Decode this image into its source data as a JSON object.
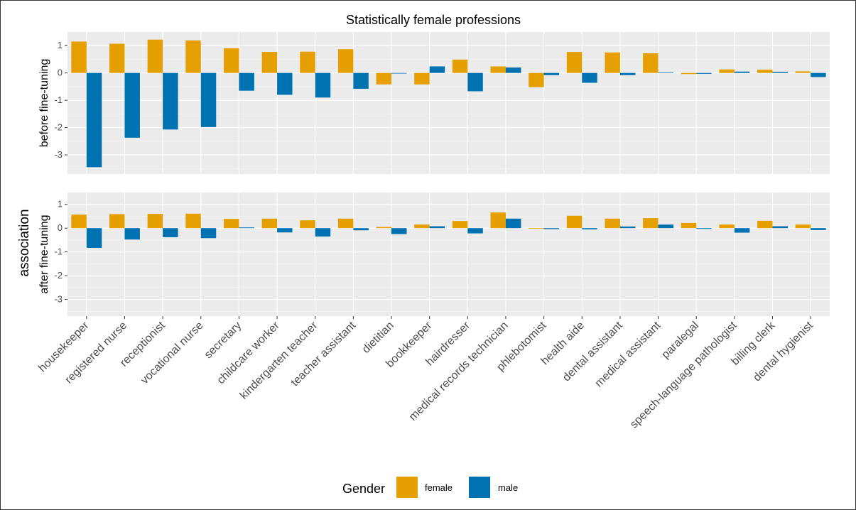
{
  "chart_data": {
    "type": "bar",
    "title": "Statistically female professions",
    "ylabel": "association",
    "ylim": [
      -3.7,
      1.5
    ],
    "yticks": [
      "1",
      "0",
      "-1",
      "-2",
      "-3"
    ],
    "grid": true,
    "legend_title": "Gender",
    "legend_position": "bottom",
    "series_colors": {
      "female": "#E69F00",
      "male": "#0072B2"
    },
    "categories": [
      "housekeeper",
      "registered nurse",
      "receptionist",
      "vocational nurse",
      "secretary",
      "childcare worker",
      "kindergarten teacher",
      "teacher assistant",
      "dietitian",
      "bookkeeper",
      "hairdresser",
      "medical records technician",
      "phlebotomist",
      "health aide",
      "dental assistant",
      "medical assistant",
      "paralegal",
      "speech-language pathologist",
      "billing clerk",
      "dental hygienist"
    ],
    "facets": [
      {
        "label": "before fine-tuning",
        "series": [
          {
            "name": "female",
            "values": [
              1.15,
              1.07,
              1.22,
              1.19,
              0.9,
              0.77,
              0.78,
              0.87,
              -0.42,
              -0.42,
              0.49,
              0.24,
              -0.52,
              0.77,
              0.75,
              0.72,
              -0.04,
              0.13,
              0.12,
              0.06
            ]
          },
          {
            "name": "male",
            "values": [
              -3.45,
              -2.37,
              -2.07,
              -1.98,
              -0.65,
              -0.8,
              -0.9,
              -0.58,
              -0.02,
              0.24,
              -0.67,
              0.2,
              -0.08,
              -0.36,
              -0.08,
              0.02,
              -0.03,
              0.05,
              0.04,
              -0.15
            ]
          }
        ]
      },
      {
        "label": "after fine-tuning",
        "series": [
          {
            "name": "female",
            "values": [
              0.57,
              0.59,
              0.6,
              0.61,
              0.39,
              0.4,
              0.33,
              0.4,
              0.05,
              0.15,
              0.3,
              0.66,
              -0.02,
              0.52,
              0.4,
              0.42,
              0.22,
              0.15,
              0.31,
              0.15
            ]
          },
          {
            "name": "male",
            "values": [
              -0.83,
              -0.48,
              -0.38,
              -0.42,
              0.03,
              -0.18,
              -0.35,
              -0.09,
              -0.25,
              0.08,
              -0.22,
              0.4,
              -0.04,
              -0.05,
              0.07,
              0.15,
              -0.03,
              -0.19,
              0.08,
              -0.08
            ]
          }
        ]
      }
    ]
  }
}
